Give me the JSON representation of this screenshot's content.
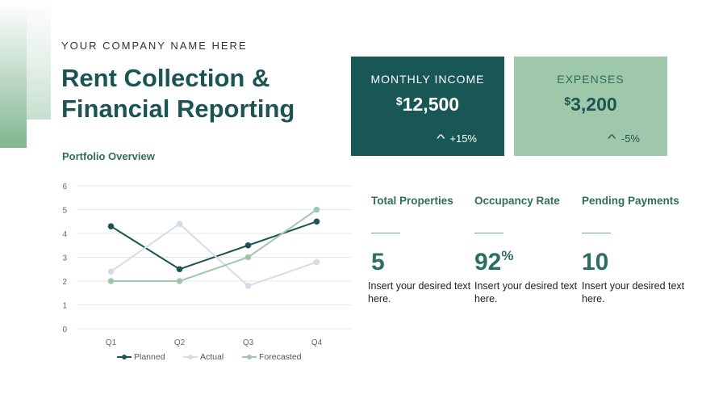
{
  "header": {
    "company": "YOUR COMPANY NAME HERE",
    "title_line1": "Rent Collection &",
    "title_line2": "Financial Reporting",
    "section": "Portfolio Overview"
  },
  "cards": {
    "income": {
      "label": "MONTHLY  INCOME",
      "currency": "$",
      "value": "12,500",
      "change": "+15%"
    },
    "expenses": {
      "label": "EXPENSES",
      "currency": "$",
      "value": "3,200",
      "change": "-5%"
    }
  },
  "stats": [
    {
      "label": "Total Properties",
      "value": "5",
      "suffix": "",
      "desc": "Insert your desired text here."
    },
    {
      "label": "Occupancy Rate",
      "value": "92",
      "suffix": "%",
      "desc": "Insert your desired text here."
    },
    {
      "label": "Pending Payments",
      "value": "10",
      "suffix": "",
      "desc": "Insert your desired text here."
    }
  ],
  "colors": {
    "dark_teal": "#195756",
    "sage": "#9fc7a9",
    "planned": "#1c5454",
    "actual": "#d5dbe7",
    "forecasted": "#9fc7a9"
  },
  "chart_data": {
    "type": "line",
    "categories": [
      "Q1",
      "Q2",
      "Q3",
      "Q4"
    ],
    "ylim": [
      0,
      6
    ],
    "yticks": [
      0,
      1,
      2,
      3,
      4,
      5,
      6
    ],
    "grid": true,
    "legend": "bottom",
    "series": [
      {
        "name": "Planned",
        "values": [
          4.3,
          2.5,
          3.5,
          4.5
        ],
        "color": "#1c5454"
      },
      {
        "name": "Actual",
        "values": [
          2.4,
          4.4,
          1.8,
          2.8
        ],
        "color": "#d5dbe7"
      },
      {
        "name": "Forecasted",
        "values": [
          2.0,
          2.0,
          3.0,
          5.0
        ],
        "color": "#9fc7a9"
      }
    ]
  }
}
